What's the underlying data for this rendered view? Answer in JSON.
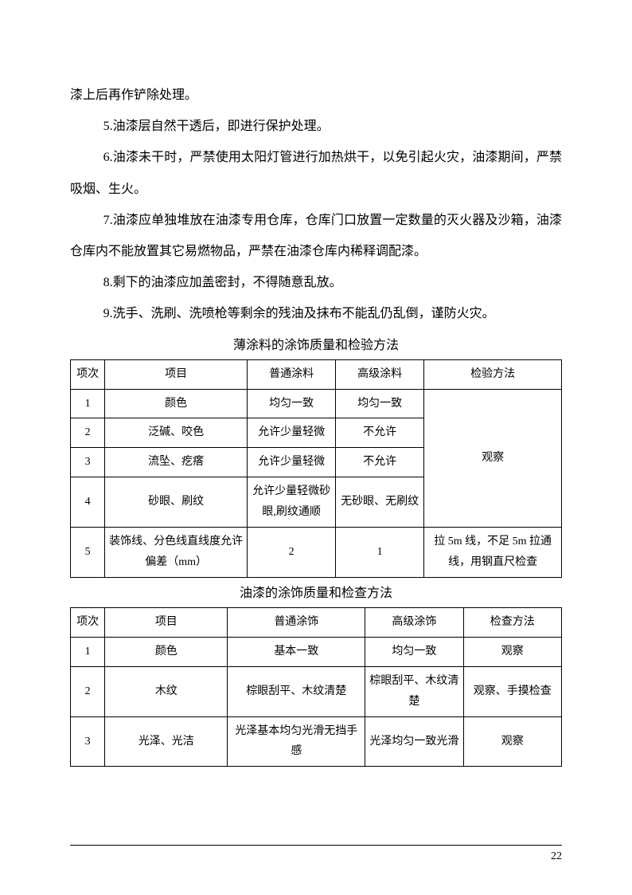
{
  "paragraphs": {
    "p0": "漆上后再作铲除处理。",
    "p5": "5.油漆层自然干透后，即进行保护处理。",
    "p6": "6.油漆未干时，严禁使用太阳灯管进行加热烘干，以免引起火灾，油漆期间，严禁吸烟、生火。",
    "p7": "7.油漆应单独堆放在油漆专用仓库，仓库门口放置一定数量的灭火器及沙箱，油漆仓库内不能放置其它易燃物品，严禁在油漆仓库内稀释调配漆。",
    "p8": "8.剩下的油漆应加盖密封，不得随意乱放。",
    "p9": "9.洗手、洗刷、洗喷枪等剩余的残油及抹布不能乱仍乱倒，谨防火灾。"
  },
  "table1": {
    "caption": "薄涂料的涂饰质量和检验方法",
    "headers": {
      "c1": "项次",
      "c2": "项目",
      "c3": "普通涂料",
      "c4": "高级涂料",
      "c5": "检验方法"
    },
    "rows": [
      {
        "n": "1",
        "item": "颜色",
        "normal": "均匀一致",
        "high": "均匀一致"
      },
      {
        "n": "2",
        "item": "泛碱、咬色",
        "normal": "允许少量轻微",
        "high": "不允许"
      },
      {
        "n": "3",
        "item": "流坠、疙瘩",
        "normal": "允许少量轻微",
        "high": "不允许"
      },
      {
        "n": "4",
        "item": "砂眼、刷纹",
        "normal": "允许少量轻微砂眼,刷纹通顺",
        "high": "无砂眼、无刷纹"
      },
      {
        "n": "5",
        "item": "装饰线、分色线直线度允许偏差（mm）",
        "normal": "2",
        "high": "1",
        "method": "拉 5m 线，不足 5m 拉通线，用钢直尺检查"
      }
    ],
    "method_merged": "观察"
  },
  "table2": {
    "caption": "油漆的涂饰质量和检查方法",
    "headers": {
      "c1": "项次",
      "c2": "项目",
      "c3": "普通涂饰",
      "c4": "高级涂饰",
      "c5": "检查方法"
    },
    "rows": [
      {
        "n": "1",
        "item": "颜色",
        "normal": "基本一致",
        "high": "均匀一致",
        "method": "观察"
      },
      {
        "n": "2",
        "item": "木纹",
        "normal": "棕眼刮平、木纹清楚",
        "high": "棕眼刮平、木纹清楚",
        "method": "观察、手摸检查"
      },
      {
        "n": "3",
        "item": "光泽、光洁",
        "normal": "光泽基本均匀光滑无挡手感",
        "high": "光泽均匀一致光滑",
        "method": "观察"
      }
    ]
  },
  "page_number": "22"
}
